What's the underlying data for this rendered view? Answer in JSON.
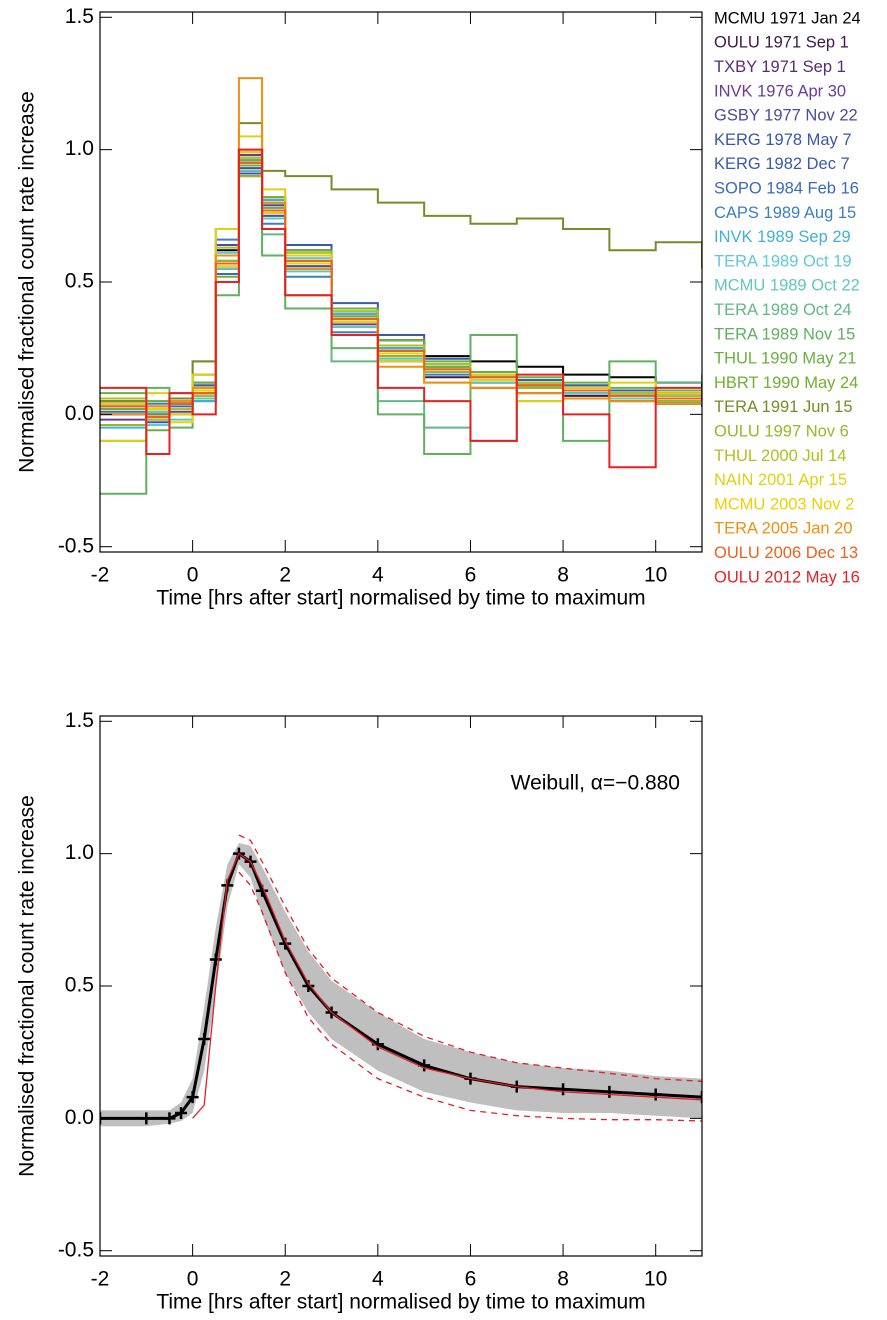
{
  "chart_data": [
    {
      "type": "line",
      "step": true,
      "legend": "outside-right",
      "x_label": "Time [hrs after start] normalised by time to maximum",
      "y_label": "Normalised fractional count rate increase",
      "xlim": [
        -2,
        11
      ],
      "ylim": [
        -0.52,
        1.52
      ],
      "xticks": [
        -2,
        0,
        2,
        4,
        6,
        8,
        10
      ],
      "yticks": [
        -0.5,
        {
          "value": 0,
          "label": "0.0"
        },
        0.5,
        {
          "value": 1,
          "label": "1.0"
        },
        1.5
      ],
      "x": [
        -2,
        -1,
        -0.5,
        0,
        0.5,
        1,
        1.5,
        2,
        3,
        4,
        5,
        6,
        7,
        8,
        9,
        10,
        11
      ],
      "series": [
        {
          "name": "MCMU 1971 Jan 24",
          "color": "#000000",
          "values": [
            0.0,
            0.02,
            0.05,
            0.1,
            0.62,
            0.92,
            0.8,
            0.62,
            0.4,
            0.28,
            0.22,
            0.2,
            0.18,
            0.15,
            0.14,
            0.12,
            0.1
          ]
        },
        {
          "name": "OULU 1971 Sep 1",
          "color": "#3c1a4a",
          "values": [
            0.03,
            -0.02,
            0.02,
            0.06,
            0.55,
            0.97,
            0.74,
            0.55,
            0.33,
            0.2,
            0.14,
            0.1,
            0.08,
            0.07,
            0.05,
            0.04,
            0.03
          ]
        },
        {
          "name": "TXBY 1971 Sep 1",
          "color": "#5a2a7a",
          "values": [
            0.05,
            0.0,
            0.04,
            0.12,
            0.58,
            0.9,
            0.82,
            0.6,
            0.38,
            0.25,
            0.19,
            0.15,
            0.12,
            0.1,
            0.09,
            0.08,
            0.06
          ]
        },
        {
          "name": "INVK 1976 Apr 30",
          "color": "#6a3a9a",
          "values": [
            -0.02,
            0.03,
            0.01,
            0.07,
            0.5,
            0.98,
            0.76,
            0.57,
            0.34,
            0.22,
            0.16,
            0.12,
            0.1,
            0.08,
            0.06,
            0.05,
            0.05
          ]
        },
        {
          "name": "GSBY 1977 Nov 22",
          "color": "#4a4aa0",
          "values": [
            0.04,
            0.01,
            0.05,
            0.09,
            0.64,
            0.93,
            0.79,
            0.6,
            0.37,
            0.26,
            0.18,
            0.14,
            0.11,
            0.1,
            0.08,
            0.07,
            0.06
          ]
        },
        {
          "name": "KERG 1978 May 7",
          "color": "#3a56a8",
          "values": [
            0.0,
            -0.03,
            0.02,
            0.05,
            0.57,
            0.96,
            0.75,
            0.56,
            0.35,
            0.23,
            0.16,
            0.13,
            0.1,
            0.09,
            0.07,
            0.05,
            0.04
          ]
        },
        {
          "name": "KERG 1982 Dec 7",
          "color": "#3a5aaa",
          "values": [
            0.06,
            0.02,
            0.04,
            0.11,
            0.6,
            0.91,
            0.8,
            0.64,
            0.42,
            0.3,
            0.21,
            0.16,
            0.13,
            0.11,
            0.09,
            0.08,
            0.07
          ]
        },
        {
          "name": "SOPO 1984 Feb 16",
          "color": "#3a6ab8",
          "values": [
            0.01,
            0.0,
            0.03,
            0.08,
            0.53,
            0.99,
            0.77,
            0.58,
            0.36,
            0.24,
            0.17,
            0.13,
            0.1,
            0.08,
            0.07,
            0.06,
            0.05
          ]
        },
        {
          "name": "CAPS 1989 Aug 15",
          "color": "#3a80c0",
          "values": [
            0.02,
            0.04,
            0.06,
            0.15,
            0.66,
            0.94,
            0.72,
            0.52,
            0.31,
            0.2,
            0.15,
            0.12,
            0.1,
            0.08,
            0.06,
            0.05,
            0.04
          ]
        },
        {
          "name": "INVK 1989 Sep 29",
          "color": "#40b0d8",
          "values": [
            -0.05,
            0.02,
            0.0,
            0.05,
            0.58,
            0.97,
            0.81,
            0.6,
            0.38,
            0.25,
            0.18,
            0.14,
            0.12,
            0.1,
            0.08,
            0.07,
            0.06
          ]
        },
        {
          "name": "TERA 1989 Oct 19",
          "color": "#60c8d8",
          "values": [
            0.03,
            -0.04,
            0.05,
            0.1,
            0.61,
            0.95,
            0.78,
            0.59,
            0.36,
            0.23,
            0.17,
            0.14,
            0.11,
            0.09,
            0.07,
            0.06,
            0.05
          ]
        },
        {
          "name": "MCMU 1989 Oct 22",
          "color": "#60c8b8",
          "values": [
            0.05,
            0.01,
            -0.02,
            0.06,
            0.55,
            0.92,
            0.74,
            0.54,
            0.33,
            0.21,
            0.16,
            0.12,
            0.1,
            0.08,
            0.06,
            0.05,
            0.04
          ]
        },
        {
          "name": "TERA 1989 Oct 24",
          "color": "#60b888",
          "values": [
            -0.1,
            0.05,
            0.08,
            0.2,
            0.7,
            0.95,
            0.68,
            0.45,
            0.2,
            0.05,
            -0.05,
            -0.1,
            0.05,
            0.1,
            0.08,
            0.12,
            0.15
          ]
        },
        {
          "name": "TERA 1989 Nov 15",
          "color": "#60b060",
          "values": [
            -0.3,
            0.1,
            -0.05,
            0.15,
            0.45,
            1.0,
            0.6,
            0.4,
            0.25,
            0.0,
            -0.15,
            0.3,
            0.1,
            -0.1,
            0.2,
            0.05,
            0.1
          ]
        },
        {
          "name": "THUL 1990 May 21",
          "color": "#6ab040",
          "values": [
            0.08,
            -0.06,
            0.04,
            0.12,
            0.6,
            0.96,
            0.78,
            0.62,
            0.4,
            0.28,
            0.2,
            0.16,
            0.14,
            0.12,
            0.1,
            0.09,
            0.08
          ]
        },
        {
          "name": "HBRT 1990 May 24",
          "color": "#70b030",
          "values": [
            0.02,
            0.05,
            0.0,
            0.08,
            0.52,
            0.94,
            0.82,
            0.6,
            0.37,
            0.24,
            0.18,
            0.15,
            0.12,
            0.1,
            0.08,
            0.07,
            0.06
          ]
        },
        {
          "name": "TERA 1991 Jun 15",
          "color": "#7a8a28",
          "values": [
            0.05,
            0.0,
            0.06,
            0.2,
            0.6,
            1.1,
            0.92,
            0.9,
            0.85,
            0.8,
            0.75,
            0.72,
            0.74,
            0.7,
            0.62,
            0.65,
            0.55
          ]
        },
        {
          "name": "OULU 1997 Nov 6",
          "color": "#98b828",
          "values": [
            -0.04,
            0.02,
            0.05,
            0.1,
            0.58,
            0.9,
            0.77,
            0.58,
            0.35,
            0.22,
            0.16,
            0.13,
            0.1,
            0.09,
            0.07,
            0.05,
            0.04
          ]
        },
        {
          "name": "THUL 2000 Jul 14",
          "color": "#b0c020",
          "values": [
            0.06,
            -0.02,
            0.02,
            0.07,
            0.63,
            0.97,
            0.8,
            0.61,
            0.39,
            0.26,
            0.19,
            0.15,
            0.12,
            0.1,
            0.08,
            0.07,
            0.06
          ]
        },
        {
          "name": "NAIN 2001 Apr 15",
          "color": "#e0d010",
          "values": [
            -0.1,
            0.08,
            0.0,
            0.15,
            0.7,
            1.05,
            0.85,
            0.6,
            0.35,
            0.2,
            0.12,
            0.15,
            0.05,
            0.1,
            0.12,
            0.08,
            0.05
          ]
        },
        {
          "name": "MCMU 2003 Nov 2",
          "color": "#f0d000",
          "values": [
            0.04,
            0.02,
            -0.03,
            0.09,
            0.56,
            0.99,
            0.76,
            0.57,
            0.35,
            0.23,
            0.17,
            0.13,
            0.11,
            0.09,
            0.07,
            0.06,
            0.05
          ]
        },
        {
          "name": "TERA 2005 Jan 20",
          "color": "#f09010",
          "values": [
            0.0,
            0.03,
            0.05,
            0.1,
            0.6,
            1.27,
            0.8,
            0.55,
            0.3,
            0.18,
            0.12,
            0.1,
            0.08,
            0.06,
            0.05,
            0.04,
            0.04
          ]
        },
        {
          "name": "OULU 2006 Dec 13",
          "color": "#f06020",
          "values": [
            0.03,
            -0.01,
            0.04,
            0.08,
            0.57,
            0.95,
            0.77,
            0.58,
            0.36,
            0.24,
            0.17,
            0.14,
            0.11,
            0.09,
            0.07,
            0.06,
            0.05
          ]
        },
        {
          "name": "OULU 2012 May 16",
          "color": "#e82020",
          "values": [
            0.1,
            -0.15,
            0.08,
            0.0,
            0.5,
            1.0,
            0.7,
            0.45,
            0.3,
            0.1,
            0.05,
            -0.1,
            0.15,
            0.0,
            -0.2,
            0.1,
            0.05
          ]
        }
      ]
    },
    {
      "type": "line",
      "step": false,
      "annotation": "Weibull, α=−0.880",
      "annotation_color": "#e0202a",
      "x_label": "Time [hrs after start] normalised by time to maximum",
      "y_label": "Normalised fractional count rate increase",
      "xlim": [
        -2,
        11
      ],
      "ylim": [
        -0.52,
        1.52
      ],
      "xticks": [
        -2,
        0,
        2,
        4,
        6,
        8,
        10
      ],
      "yticks": [
        -0.5,
        {
          "value": 0,
          "label": "0.0"
        },
        0.5,
        {
          "value": 1,
          "label": "1.0"
        },
        1.5
      ],
      "x": [
        -2,
        -1,
        -0.5,
        -0.25,
        0,
        0.25,
        0.5,
        0.75,
        1,
        1.25,
        1.5,
        2,
        2.5,
        3,
        4,
        5,
        6,
        7,
        8,
        9,
        10,
        11
      ],
      "band": {
        "color": "#bfbfbf",
        "upper": [
          0.03,
          0.03,
          0.03,
          0.06,
          0.15,
          0.42,
          0.72,
          0.96,
          1.04,
          1.03,
          0.95,
          0.78,
          0.63,
          0.52,
          0.4,
          0.3,
          0.25,
          0.21,
          0.19,
          0.18,
          0.16,
          0.15
        ],
        "lower": [
          -0.03,
          -0.03,
          -0.02,
          -0.01,
          0.02,
          0.18,
          0.48,
          0.8,
          0.96,
          0.91,
          0.77,
          0.55,
          0.4,
          0.3,
          0.18,
          0.1,
          0.06,
          0.03,
          0.02,
          0.02,
          0.01,
          0.0
        ]
      },
      "series": [
        {
          "color": "#000000",
          "marker": "plus",
          "values": [
            0,
            0,
            0,
            0.02,
            0.08,
            0.3,
            0.6,
            0.88,
            1.0,
            0.97,
            0.86,
            0.66,
            0.5,
            0.4,
            0.28,
            0.2,
            0.15,
            0.12,
            0.11,
            0.1,
            0.09,
            0.08
          ]
        },
        {
          "color": "#e0202a",
          "values": [
            null,
            null,
            null,
            null,
            0,
            0.05,
            0.5,
            0.9,
            1.0,
            0.97,
            0.88,
            0.67,
            0.51,
            0.4,
            0.27,
            0.19,
            0.15,
            0.12,
            0.1,
            0.09,
            0.08,
            0.07
          ]
        },
        {
          "color": "#e0202a",
          "dash": true,
          "values": [
            null,
            null,
            null,
            null,
            null,
            null,
            null,
            null,
            1.07,
            1.05,
            0.97,
            0.8,
            0.64,
            0.53,
            0.4,
            0.31,
            0.25,
            0.21,
            0.19,
            0.17,
            0.15,
            0.14
          ]
        },
        {
          "color": "#e0202a",
          "dash": true,
          "values": [
            null,
            null,
            null,
            null,
            null,
            null,
            null,
            null,
            0.93,
            0.88,
            0.78,
            0.55,
            0.38,
            0.28,
            0.15,
            0.08,
            0.03,
            0.01,
            0.0,
            -0.005,
            -0.005,
            -0.01
          ]
        }
      ]
    }
  ]
}
